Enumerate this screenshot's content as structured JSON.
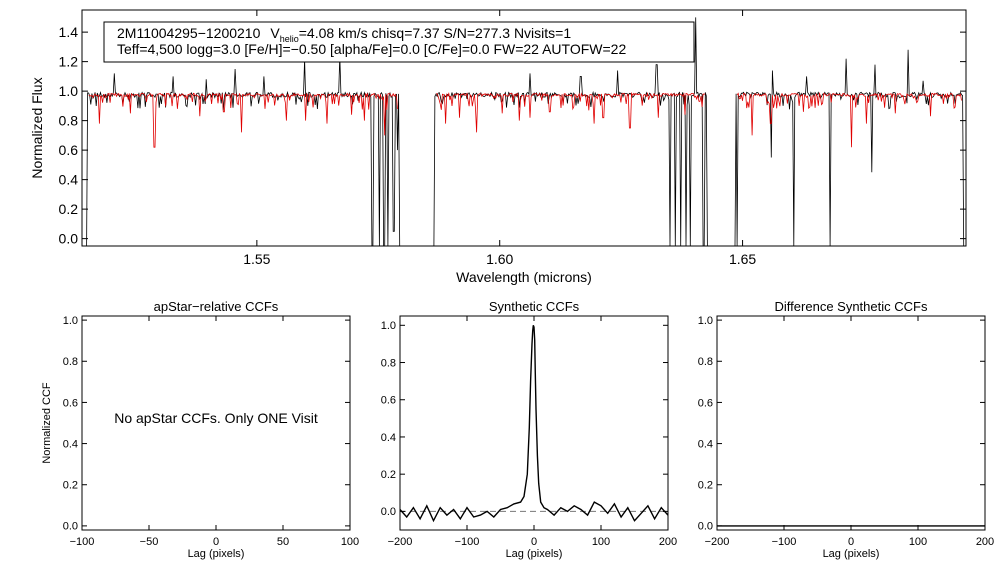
{
  "colors": {
    "observed": "#000000",
    "model": "#e00000",
    "axes": "#000000",
    "zero_line": "#777777"
  },
  "spectrum": {
    "header": {
      "star_id": "2M11004295−1200210",
      "v_symbol": "V",
      "v_subscript": "helio",
      "v_rest": "=4.08 km/s  chisq=7.37  S/N=277.3  Nvisits=1",
      "line2": "Teff=4,500 logg=3.0 [Fe/H]=−0.50 [alpha/Fe]=0.0 [C/Fe]=0.0 FW=22 AUTOFW=22"
    },
    "chart_data": {
      "type": "line",
      "xlabel": "Wavelength (microns)",
      "ylabel": "Normalized Flux",
      "xlim": [
        1.514,
        1.696
      ],
      "ylim": [
        -0.05,
        1.55
      ],
      "x_ticks": [
        1.55,
        1.6,
        1.65
      ],
      "x_tick_labels": [
        "1.55",
        "1.60",
        "1.65"
      ],
      "y_ticks": [
        0.0,
        0.2,
        0.4,
        0.6,
        0.8,
        1.0,
        1.2,
        1.4
      ],
      "y_tick_labels": [
        "0.0",
        "0.2",
        "0.4",
        "0.6",
        "0.8",
        "1.0",
        "1.2",
        "1.4"
      ],
      "chips": [
        [
          1.5145,
          1.58
        ],
        [
          1.586,
          1.6434
        ],
        [
          1.648,
          1.696
        ]
      ],
      "series": [
        {
          "name": "observed",
          "continuum": 0.975
        },
        {
          "name": "model",
          "continuum": 0.975
        }
      ],
      "emission_spikes": [
        [
          1.5207,
          1.12
        ],
        [
          1.5328,
          1.1
        ],
        [
          1.5395,
          1.08
        ],
        [
          1.5455,
          1.15
        ],
        [
          1.5515,
          1.1
        ],
        [
          1.5598,
          1.22
        ],
        [
          1.567,
          1.24
        ],
        [
          1.6063,
          1.12
        ],
        [
          1.6167,
          1.1
        ],
        [
          1.6243,
          1.14
        ],
        [
          1.6323,
          1.18
        ],
        [
          1.6403,
          1.5
        ],
        [
          1.6562,
          1.14
        ],
        [
          1.6632,
          1.1
        ],
        [
          1.6713,
          1.22
        ],
        [
          1.6772,
          1.18
        ],
        [
          1.684,
          1.28
        ],
        [
          1.6872,
          1.07
        ]
      ],
      "deep_drops": [
        [
          1.5738,
          -0.05
        ],
        [
          1.5752,
          -0.05
        ],
        [
          1.5762,
          -0.05
        ],
        [
          1.577,
          -0.05
        ],
        [
          1.5782,
          0.05
        ],
        [
          1.579,
          0.6
        ],
        [
          1.635,
          -0.05
        ],
        [
          1.6362,
          -0.05
        ],
        [
          1.6372,
          -0.05
        ],
        [
          1.6384,
          -0.05
        ],
        [
          1.6393,
          -0.05
        ],
        [
          1.6403,
          -0.05
        ],
        [
          1.642,
          -0.05
        ],
        [
          1.643,
          -0.05
        ],
        [
          1.6488,
          -0.05
        ],
        [
          1.656,
          0.55
        ],
        [
          1.6605,
          -0.05
        ],
        [
          1.668,
          -0.05
        ],
        [
          1.6766,
          0.45
        ]
      ],
      "model_lines": [
        [
          1.5175,
          0.78
        ],
        [
          1.524,
          0.85
        ],
        [
          1.5289,
          0.62
        ],
        [
          1.5336,
          0.88
        ],
        [
          1.5383,
          0.83
        ],
        [
          1.5432,
          0.86
        ],
        [
          1.5469,
          0.72
        ],
        [
          1.5516,
          0.88
        ],
        [
          1.556,
          0.8
        ],
        [
          1.56,
          0.8
        ],
        [
          1.5645,
          0.78
        ],
        [
          1.5695,
          0.84
        ],
        [
          1.5721,
          0.8
        ],
        [
          1.5763,
          0.7
        ],
        [
          1.5888,
          0.78
        ],
        [
          1.5918,
          0.82
        ],
        [
          1.5953,
          0.72
        ],
        [
          1.6005,
          0.85
        ],
        [
          1.6041,
          0.8
        ],
        [
          1.6063,
          0.82
        ],
        [
          1.6103,
          0.86
        ],
        [
          1.615,
          0.88
        ],
        [
          1.6195,
          0.78
        ],
        [
          1.6213,
          0.82
        ],
        [
          1.6268,
          0.75
        ],
        [
          1.6326,
          0.82
        ],
        [
          1.6381,
          0.84
        ],
        [
          1.652,
          0.7
        ],
        [
          1.6558,
          0.78
        ],
        [
          1.6625,
          0.86
        ],
        [
          1.6725,
          0.62
        ],
        [
          1.6755,
          0.78
        ],
        [
          1.6815,
          0.85
        ],
        [
          1.6887,
          0.83
        ]
      ]
    }
  },
  "ccf_panels": [
    {
      "title": "apStar−relative CCFs",
      "note": "No apStar CCFs.  Only ONE Visit",
      "chart_data": {
        "type": "line",
        "title": "apStar−relative CCFs",
        "xlabel": "Lag (pixels)",
        "ylabel": "Normalized CCF",
        "xlim": [
          -100,
          100
        ],
        "ylim": [
          -0.02,
          1.02
        ],
        "x_ticks": [
          -100,
          -50,
          0,
          50,
          100
        ],
        "x_tick_labels": [
          "−100",
          "−50",
          "0",
          "50",
          "100"
        ],
        "y_ticks": [
          0.0,
          0.2,
          0.4,
          0.6,
          0.8,
          1.0
        ],
        "y_tick_labels": [
          "0.0",
          "0.2",
          "0.4",
          "0.6",
          "0.8",
          "1.0"
        ],
        "series": []
      }
    },
    {
      "title": "Synthetic CCFs",
      "note": "",
      "chart_data": {
        "type": "line",
        "title": "Synthetic CCFs",
        "xlabel": "Lag (pixels)",
        "ylabel": "",
        "xlim": [
          -200,
          200
        ],
        "ylim": [
          -0.1,
          1.05
        ],
        "x_ticks": [
          -200,
          -100,
          0,
          100,
          200
        ],
        "x_tick_labels": [
          "−200",
          "−100",
          "0",
          "100",
          "200"
        ],
        "y_ticks": [
          0.0,
          0.2,
          0.4,
          0.6,
          0.8,
          1.0
        ],
        "y_tick_labels": [
          "0.0",
          "0.2",
          "0.4",
          "0.6",
          "0.8",
          "1.0"
        ],
        "zero_line": 0.0,
        "series": [
          {
            "name": "synthetic CCF",
            "x": [
              -200,
              -190,
              -180,
              -170,
              -160,
              -150,
              -140,
              -130,
              -120,
              -110,
              -100,
              -90,
              -80,
              -70,
              -60,
              -50,
              -40,
              -30,
              -20,
              -15,
              -10,
              -7,
              -5,
              -3,
              -2,
              -1,
              0,
              1,
              2,
              3,
              5,
              7,
              10,
              15,
              20,
              30,
              40,
              50,
              60,
              70,
              80,
              90,
              100,
              110,
              120,
              130,
              140,
              150,
              160,
              170,
              180,
              190,
              200
            ],
            "values": [
              0.01,
              -0.03,
              0.02,
              -0.04,
              0.03,
              -0.05,
              0.02,
              -0.02,
              0.01,
              -0.04,
              0.02,
              -0.03,
              -0.02,
              0.0,
              -0.03,
              0.01,
              0.02,
              0.04,
              0.05,
              0.08,
              0.2,
              0.45,
              0.7,
              0.9,
              0.97,
              1.0,
              0.99,
              0.92,
              0.74,
              0.55,
              0.3,
              0.15,
              0.05,
              0.02,
              0.01,
              -0.02,
              0.02,
              0.0,
              0.03,
              0.01,
              -0.02,
              0.05,
              0.03,
              -0.01,
              0.04,
              -0.03,
              0.02,
              -0.05,
              -0.01,
              0.03,
              -0.04,
              0.02,
              -0.02
            ]
          }
        ]
      }
    },
    {
      "title": "Difference Synthetic CCFs",
      "note": "",
      "chart_data": {
        "type": "line",
        "title": "Difference Synthetic CCFs",
        "xlabel": "Lag (pixels)",
        "ylabel": "",
        "xlim": [
          -200,
          200
        ],
        "ylim": [
          -0.02,
          1.02
        ],
        "x_ticks": [
          -200,
          -100,
          0,
          100,
          200
        ],
        "x_tick_labels": [
          "−200",
          "−100",
          "0",
          "100",
          "200"
        ],
        "y_ticks": [
          0.0,
          0.2,
          0.4,
          0.6,
          0.8,
          1.0
        ],
        "y_tick_labels": [
          "0.0",
          "0.2",
          "0.4",
          "0.6",
          "0.8",
          "1.0"
        ],
        "series": [
          {
            "name": "difference",
            "x": [
              -200,
              200
            ],
            "values": [
              0.0,
              0.0
            ]
          }
        ]
      }
    }
  ]
}
